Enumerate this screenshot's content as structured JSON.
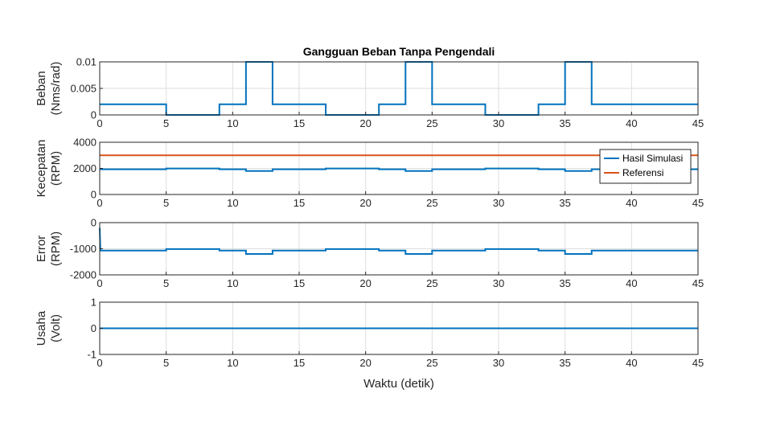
{
  "chart_data": {
    "type": "line",
    "title": "Gangguan Beban Tanpa Pengendali",
    "xlabel": "Waktu (detik)",
    "xlim": [
      0,
      45
    ],
    "xticks": [
      0,
      5,
      10,
      15,
      20,
      25,
      30,
      35,
      40,
      45
    ],
    "grid": true,
    "colors": {
      "blue": "#0072bd",
      "orange": "#d95319"
    },
    "subplots": [
      {
        "ylabel_lines": [
          "Beban",
          "(Nms/rad)"
        ],
        "ylim": [
          0,
          0.01
        ],
        "yticks": [
          0,
          0.005,
          0.01
        ],
        "ytick_labels": [
          "0",
          "0.005",
          "0.01"
        ],
        "series": [
          {
            "color": "#0072bd",
            "x": [
              0,
              5,
              5,
              9,
              9,
              11,
              11,
              13,
              13,
              17,
              17,
              21,
              21,
              23,
              23,
              25,
              25,
              29,
              29,
              33,
              33,
              35,
              35,
              37,
              37,
              45
            ],
            "y": [
              0.002,
              0.002,
              0,
              0,
              0.002,
              0.002,
              0.01,
              0.01,
              0.002,
              0.002,
              0,
              0,
              0.002,
              0.002,
              0.01,
              0.01,
              0.002,
              0.002,
              0,
              0,
              0.002,
              0.002,
              0.01,
              0.01,
              0.002,
              0.002
            ]
          }
        ]
      },
      {
        "ylabel_lines": [
          "Kecepatan",
          "(RPM)"
        ],
        "ylim": [
          0,
          4000
        ],
        "yticks": [
          0,
          2000,
          4000
        ],
        "ytick_labels": [
          "0",
          "2000",
          "4000"
        ],
        "legend": {
          "position": "top-right",
          "entries": [
            "Hasil Simulasi",
            "Referensi"
          ]
        },
        "series": [
          {
            "name": "Hasil Simulasi",
            "color": "#0072bd",
            "x": [
              0,
              5,
              5,
              9,
              9,
              11,
              11,
              13,
              13,
              17,
              17,
              21,
              21,
              23,
              23,
              25,
              25,
              29,
              29,
              33,
              33,
              35,
              35,
              37,
              37,
              45
            ],
            "y": [
              1930,
              1930,
              1990,
              1990,
              1930,
              1930,
              1800,
              1800,
              1930,
              1930,
              1990,
              1990,
              1930,
              1930,
              1800,
              1800,
              1930,
              1930,
              1990,
              1990,
              1930,
              1930,
              1800,
              1800,
              1930,
              1930
            ]
          },
          {
            "name": "Referensi",
            "color": "#d95319",
            "x": [
              0,
              45
            ],
            "y": [
              3000,
              3000
            ]
          }
        ]
      },
      {
        "ylabel_lines": [
          "Error",
          "(RPM)"
        ],
        "ylim": [
          -2000,
          0
        ],
        "yticks": [
          -2000,
          -1000,
          0
        ],
        "ytick_labels": [
          "-2000",
          "-1000",
          "0"
        ],
        "series": [
          {
            "color": "#0072bd",
            "x": [
              0,
              0.05,
              5,
              5,
              9,
              9,
              11,
              11,
              13,
              13,
              17,
              17,
              21,
              21,
              23,
              23,
              25,
              25,
              29,
              29,
              33,
              33,
              35,
              35,
              37,
              37,
              45
            ],
            "y": [
              -200,
              -1070,
              -1070,
              -1010,
              -1010,
              -1070,
              -1070,
              -1200,
              -1200,
              -1070,
              -1070,
              -1010,
              -1010,
              -1070,
              -1070,
              -1200,
              -1200,
              -1070,
              -1070,
              -1010,
              -1010,
              -1070,
              -1070,
              -1200,
              -1200,
              -1070,
              -1070
            ]
          }
        ]
      },
      {
        "ylabel_lines": [
          "Usaha",
          "(Volt)"
        ],
        "ylim": [
          -1,
          1
        ],
        "yticks": [
          -1,
          0,
          1
        ],
        "ytick_labels": [
          "-1",
          "0",
          "1"
        ],
        "series": [
          {
            "color": "#0072bd",
            "x": [
              0,
              45
            ],
            "y": [
              0,
              0
            ]
          }
        ]
      }
    ]
  }
}
